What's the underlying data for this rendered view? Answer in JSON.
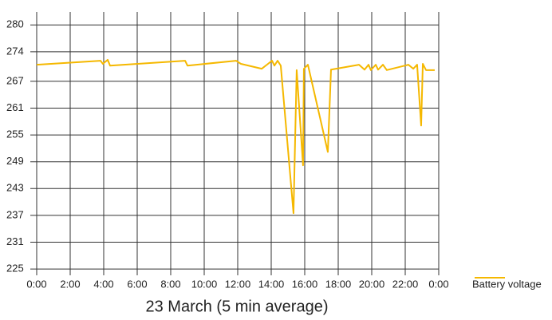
{
  "chart_data": {
    "type": "line",
    "title": "23 March (5 min average)",
    "x": [
      0,
      3.81,
      3.95,
      4.24,
      4.38,
      8.86,
      9.0,
      11.9,
      12.19,
      13.43,
      13.81,
      14.05,
      14.19,
      14.38,
      14.57,
      15.33,
      15.52,
      15.9,
      15.95,
      16.19,
      17.38,
      17.57,
      19.24,
      19.57,
      19.81,
      19.95,
      20.24,
      20.38,
      20.67,
      20.9,
      22.19,
      22.48,
      22.71,
      22.95,
      23.05,
      23.24,
      23.76
    ],
    "series": [
      {
        "name": "Battery voltage",
        "color": "#f5b800",
        "values": [
          270.7,
          271.6,
          270.9,
          271.8,
          270.5,
          271.6,
          270.5,
          271.6,
          270.9,
          269.8,
          270.9,
          271.6,
          270.5,
          271.6,
          270.5,
          237.5,
          269.5,
          248.2,
          269.8,
          270.7,
          251.2,
          269.6,
          270.7,
          269.6,
          270.7,
          269.5,
          270.7,
          269.6,
          270.7,
          269.5,
          270.7,
          269.8,
          270.7,
          257.1,
          270.9,
          269.5,
          269.5
        ]
      }
    ],
    "xlim": [
      0,
      24
    ],
    "xticks": [
      {
        "value": 0,
        "label": "0:00"
      },
      {
        "value": 2,
        "label": "2:00"
      },
      {
        "value": 4,
        "label": "4:00"
      },
      {
        "value": 6,
        "label": "6:00"
      },
      {
        "value": 8,
        "label": "8:00"
      },
      {
        "value": 10,
        "label": "10:00"
      },
      {
        "value": 12,
        "label": "12:00"
      },
      {
        "value": 14,
        "label": "14:00"
      },
      {
        "value": 16,
        "label": "16:00"
      },
      {
        "value": 18,
        "label": "18:00"
      },
      {
        "value": 20,
        "label": "20:00"
      },
      {
        "value": 22,
        "label": "22:00"
      },
      {
        "value": 24,
        "label": "0:00"
      }
    ],
    "ylim": [
      223.6,
      282.5
    ],
    "yticks": [
      225,
      231,
      237,
      243,
      249,
      255,
      261,
      267,
      {
        "value": 273.6,
        "label": "274"
      },
      {
        "value": 279.6,
        "label": "280"
      }
    ],
    "grid": true
  }
}
